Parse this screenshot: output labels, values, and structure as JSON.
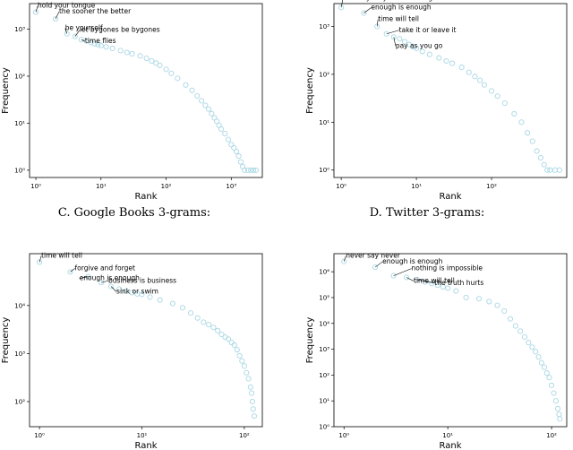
{
  "captions": [
    {
      "text": "C. Google Books 3-grams:"
    },
    {
      "text": "D. Twitter 3-grams:"
    }
  ],
  "style": {
    "marker_color": "#a9d7e4",
    "annotation_line_color": "#000000"
  },
  "chart_data": [
    {
      "type": "scatter",
      "xlabel": "Rank",
      "ylabel": "Frequency",
      "xscale": "log",
      "yscale": "log",
      "xlim": [
        0.8,
        3000
      ],
      "ylim": [
        0.7,
        3500
      ],
      "xticks": [
        {
          "v": 1,
          "t": "10⁰"
        },
        {
          "v": 10,
          "t": "10¹"
        },
        {
          "v": 100,
          "t": "10²"
        },
        {
          "v": 1000,
          "t": "10³"
        }
      ],
      "yticks": [
        {
          "v": 1,
          "t": "10⁰"
        },
        {
          "v": 10,
          "t": "10¹"
        },
        {
          "v": 100,
          "t": "10²"
        },
        {
          "v": 1000,
          "t": "10³"
        }
      ],
      "points": [
        [
          1,
          2300
        ],
        [
          2,
          1650
        ],
        [
          3,
          800
        ],
        [
          4,
          700
        ],
        [
          5,
          600
        ],
        [
          6,
          560
        ],
        [
          7,
          520
        ],
        [
          8,
          490
        ],
        [
          9,
          470
        ],
        [
          10,
          450
        ],
        [
          12,
          420
        ],
        [
          15,
          390
        ],
        [
          20,
          350
        ],
        [
          25,
          320
        ],
        [
          30,
          300
        ],
        [
          40,
          270
        ],
        [
          50,
          240
        ],
        [
          60,
          210
        ],
        [
          70,
          190
        ],
        [
          80,
          170
        ],
        [
          100,
          140
        ],
        [
          120,
          115
        ],
        [
          150,
          90
        ],
        [
          200,
          65
        ],
        [
          250,
          50
        ],
        [
          300,
          38
        ],
        [
          350,
          30
        ],
        [
          400,
          24
        ],
        [
          450,
          20
        ],
        [
          500,
          16
        ],
        [
          550,
          13
        ],
        [
          600,
          11
        ],
        [
          650,
          9
        ],
        [
          700,
          7.5
        ],
        [
          800,
          6
        ],
        [
          900,
          4.5
        ],
        [
          1000,
          3.5
        ],
        [
          1100,
          3
        ],
        [
          1200,
          2.5
        ],
        [
          1300,
          2
        ],
        [
          1400,
          1.5
        ],
        [
          1500,
          1.2
        ],
        [
          1600,
          1
        ],
        [
          1800,
          1
        ],
        [
          2000,
          1
        ],
        [
          2200,
          1
        ],
        [
          2400,
          1
        ]
      ],
      "annotations": [
        {
          "text": "hold your tongue",
          "x": 1,
          "y": 2300
        },
        {
          "text": "the sooner the better",
          "x": 2,
          "y": 1650
        },
        {
          "text": "be yourself",
          "x": 3,
          "y": 800
        },
        {
          "text": "let bygones be bygones",
          "x": 4,
          "y": 700
        },
        {
          "text": "time flies",
          "x": 5,
          "y": 600
        }
      ]
    },
    {
      "type": "scatter",
      "xlabel": "Rank",
      "ylabel": "Frequency",
      "xscale": "log",
      "yscale": "log",
      "xlim": [
        0.8,
        1000
      ],
      "ylim": [
        0.7,
        3000
      ],
      "xticks": [
        {
          "v": 1,
          "t": "10⁰"
        },
        {
          "v": 10,
          "t": "10¹"
        },
        {
          "v": 100,
          "t": "10²"
        }
      ],
      "yticks": [
        {
          "v": 1,
          "t": "10⁰"
        },
        {
          "v": 10,
          "t": "10¹"
        },
        {
          "v": 100,
          "t": "10²"
        },
        {
          "v": 1000,
          "t": "10³"
        }
      ],
      "points": [
        [
          1,
          2500
        ],
        [
          2,
          1900
        ],
        [
          3,
          1000
        ],
        [
          4,
          700
        ],
        [
          5,
          600
        ],
        [
          6,
          550
        ],
        [
          7,
          480
        ],
        [
          8,
          420
        ],
        [
          9,
          380
        ],
        [
          10,
          350
        ],
        [
          12,
          300
        ],
        [
          15,
          260
        ],
        [
          20,
          220
        ],
        [
          25,
          190
        ],
        [
          30,
          170
        ],
        [
          40,
          140
        ],
        [
          50,
          110
        ],
        [
          60,
          90
        ],
        [
          70,
          75
        ],
        [
          80,
          60
        ],
        [
          100,
          45
        ],
        [
          120,
          35
        ],
        [
          150,
          25
        ],
        [
          200,
          15
        ],
        [
          250,
          10
        ],
        [
          300,
          6
        ],
        [
          350,
          4
        ],
        [
          400,
          2.5
        ],
        [
          450,
          1.8
        ],
        [
          500,
          1.3
        ],
        [
          550,
          1
        ],
        [
          600,
          1
        ],
        [
          700,
          1
        ],
        [
          800,
          1
        ]
      ],
      "annotations": [
        {
          "text": "to delay may mean to forget",
          "x": 1,
          "y": 2500
        },
        {
          "text": "enough is enough",
          "x": 2,
          "y": 1900
        },
        {
          "text": "time will tell",
          "x": 3,
          "y": 1000
        },
        {
          "text": "take it or leave it",
          "x": 4,
          "y": 700
        },
        {
          "text": "pay as you go",
          "x": 5,
          "y": 600
        }
      ]
    },
    {
      "type": "scatter",
      "xlabel": "Rank",
      "ylabel": "Frequency",
      "xscale": "log",
      "yscale": "log",
      "xlim": [
        0.8,
        150
      ],
      "ylim": [
        30,
        120000
      ],
      "xticks": [
        {
          "v": 1,
          "t": "10⁰"
        },
        {
          "v": 10,
          "t": "10¹"
        },
        {
          "v": 100,
          "t": "10²"
        }
      ],
      "yticks": [
        {
          "v": 100,
          "t": "10²"
        },
        {
          "v": 1000,
          "t": "10³"
        },
        {
          "v": 10000,
          "t": "10⁴"
        }
      ],
      "points": [
        [
          1,
          80000
        ],
        [
          2,
          50000
        ],
        [
          3,
          40000
        ],
        [
          4,
          30000
        ],
        [
          5,
          25000
        ],
        [
          6,
          22000
        ],
        [
          7,
          20000
        ],
        [
          8,
          18500
        ],
        [
          9,
          17500
        ],
        [
          10,
          17000
        ],
        [
          12,
          15000
        ],
        [
          15,
          13000
        ],
        [
          20,
          11000
        ],
        [
          25,
          9000
        ],
        [
          30,
          7000
        ],
        [
          35,
          5500
        ],
        [
          40,
          4500
        ],
        [
          45,
          4000
        ],
        [
          50,
          3500
        ],
        [
          55,
          3000
        ],
        [
          60,
          2500
        ],
        [
          65,
          2200
        ],
        [
          70,
          2000
        ],
        [
          75,
          1700
        ],
        [
          80,
          1500
        ],
        [
          85,
          1200
        ],
        [
          90,
          900
        ],
        [
          95,
          700
        ],
        [
          100,
          550
        ],
        [
          105,
          400
        ],
        [
          110,
          300
        ],
        [
          115,
          200
        ],
        [
          118,
          150
        ],
        [
          120,
          100
        ],
        [
          122,
          70
        ],
        [
          125,
          50
        ]
      ],
      "annotations": [
        {
          "text": "time will tell",
          "x": 1,
          "y": 80000
        },
        {
          "text": "forgive and forget",
          "x": 2,
          "y": 50000
        },
        {
          "text": "enough is enough",
          "x": 3,
          "y": 40000
        },
        {
          "text": "business is business",
          "x": 4,
          "y": 30000
        },
        {
          "text": "sink or swim",
          "x": 5,
          "y": 25000
        }
      ]
    },
    {
      "type": "scatter",
      "xlabel": "Rank",
      "ylabel": "Frequency",
      "xscale": "log",
      "yscale": "log",
      "xlim": [
        0.8,
        140
      ],
      "ylim": [
        1,
        5000000
      ],
      "xticks": [
        {
          "v": 1,
          "t": "10⁰"
        },
        {
          "v": 10,
          "t": "10¹"
        },
        {
          "v": 100,
          "t": "10²"
        }
      ],
      "yticks": [
        {
          "v": 1,
          "t": "10⁰"
        },
        {
          "v": 10,
          "t": "10¹"
        },
        {
          "v": 100,
          "t": "10²"
        },
        {
          "v": 1000,
          "t": "10³"
        },
        {
          "v": 10000,
          "t": "10⁴"
        },
        {
          "v": 100000,
          "t": "10⁵"
        },
        {
          "v": 1000000,
          "t": "10⁶"
        }
      ],
      "points": [
        [
          1,
          2500000
        ],
        [
          2,
          1500000
        ],
        [
          3,
          700000
        ],
        [
          4,
          600000
        ],
        [
          5,
          500000
        ],
        [
          6,
          400000
        ],
        [
          7,
          350000
        ],
        [
          8,
          300000
        ],
        [
          9,
          260000
        ],
        [
          10,
          230000
        ],
        [
          12,
          180000
        ],
        [
          15,
          100000
        ],
        [
          20,
          90000
        ],
        [
          25,
          70000
        ],
        [
          30,
          50000
        ],
        [
          35,
          30000
        ],
        [
          40,
          15000
        ],
        [
          45,
          8000
        ],
        [
          50,
          5000
        ],
        [
          55,
          3000
        ],
        [
          60,
          1800
        ],
        [
          65,
          1200
        ],
        [
          70,
          800
        ],
        [
          75,
          500
        ],
        [
          80,
          300
        ],
        [
          85,
          200
        ],
        [
          90,
          120
        ],
        [
          95,
          80
        ],
        [
          100,
          40
        ],
        [
          105,
          20
        ],
        [
          110,
          10
        ],
        [
          115,
          5
        ],
        [
          118,
          3
        ],
        [
          120,
          2
        ]
      ],
      "annotations": [
        {
          "text": "never say never",
          "x": 1,
          "y": 2500000
        },
        {
          "text": "enough is enough",
          "x": 2,
          "y": 1500000
        },
        {
          "text": "nothing is impossible",
          "x": 3,
          "y": 700000
        },
        {
          "text": "time will tell",
          "x": 4,
          "y": 600000
        },
        {
          "text": "the truth hurts",
          "x": 5,
          "y": 500000
        }
      ]
    }
  ]
}
